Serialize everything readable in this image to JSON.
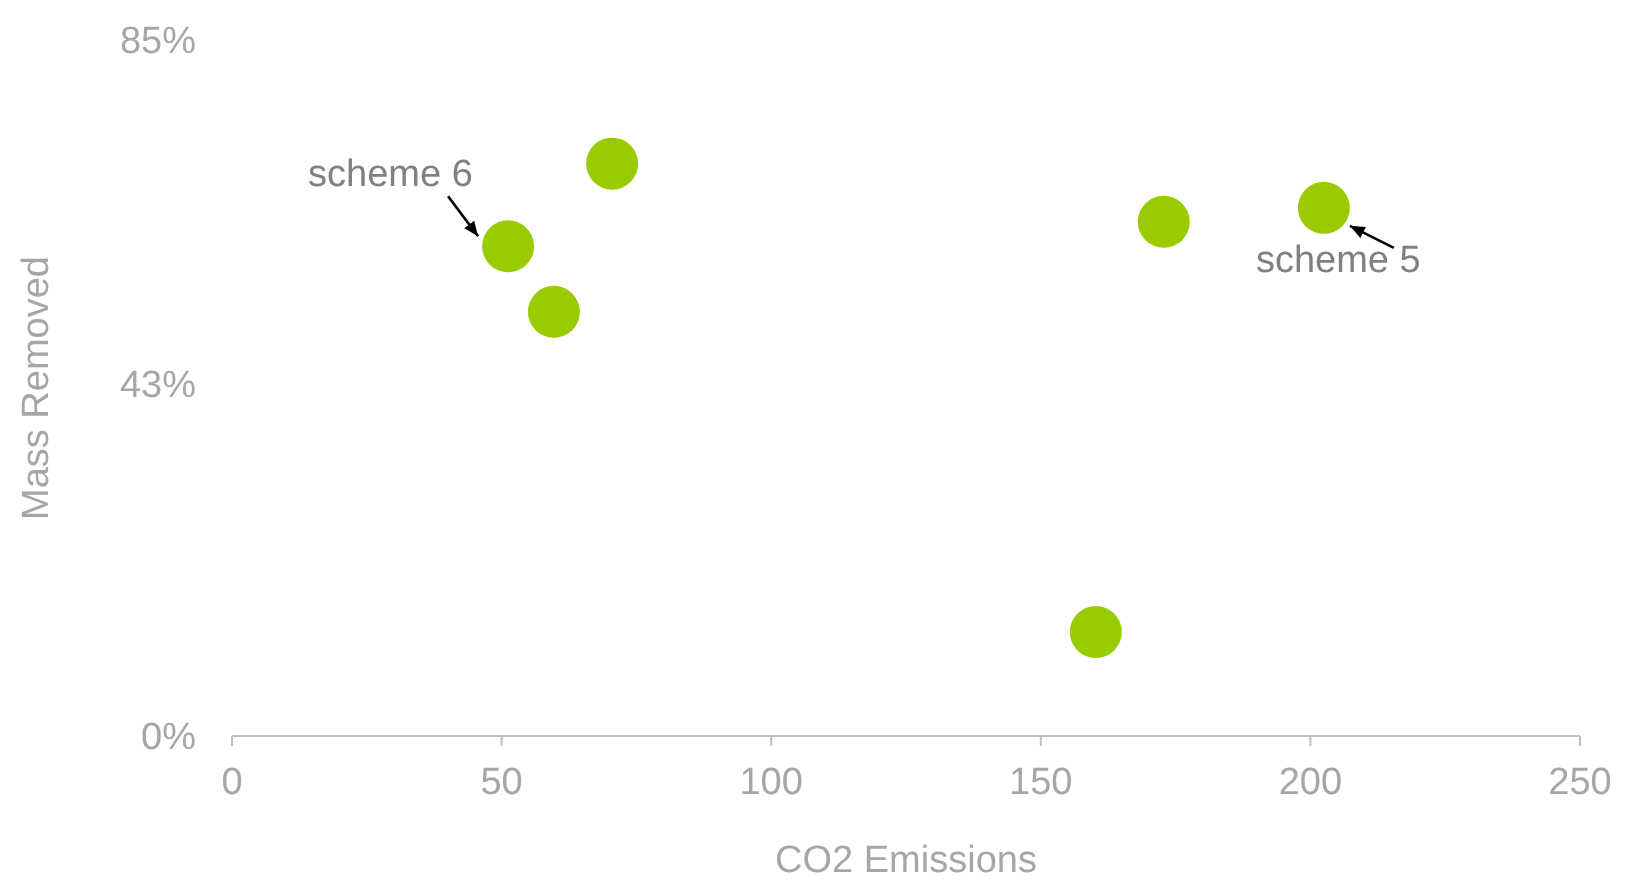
{
  "chart_data": {
    "type": "scatter",
    "xlabel": "CO2 Emissions",
    "ylabel": "Mass Removed",
    "x": [
      51.2,
      59.7,
      70.5,
      160.2,
      172.8,
      202.5
    ],
    "values": [
      59.8,
      51.8,
      69.9,
      12.7,
      62.8,
      64.5
    ],
    "color": "#99cc00",
    "marker": "circle",
    "grid": false,
    "xlim": [
      0,
      250
    ],
    "xticks": [
      0,
      50,
      100,
      150,
      200,
      250
    ],
    "ylim": [
      0,
      85
    ],
    "yticks": [
      {
        "value": 0,
        "label": "0%"
      },
      {
        "value": 43,
        "label": "43%"
      },
      {
        "value": 85,
        "label": "85%"
      }
    ],
    "annotations": [
      {
        "text": "scheme 6",
        "x": 51.2,
        "y": 59.8
      },
      {
        "text": "scheme 5",
        "x": 202.5,
        "y": 64.5
      }
    ]
  }
}
